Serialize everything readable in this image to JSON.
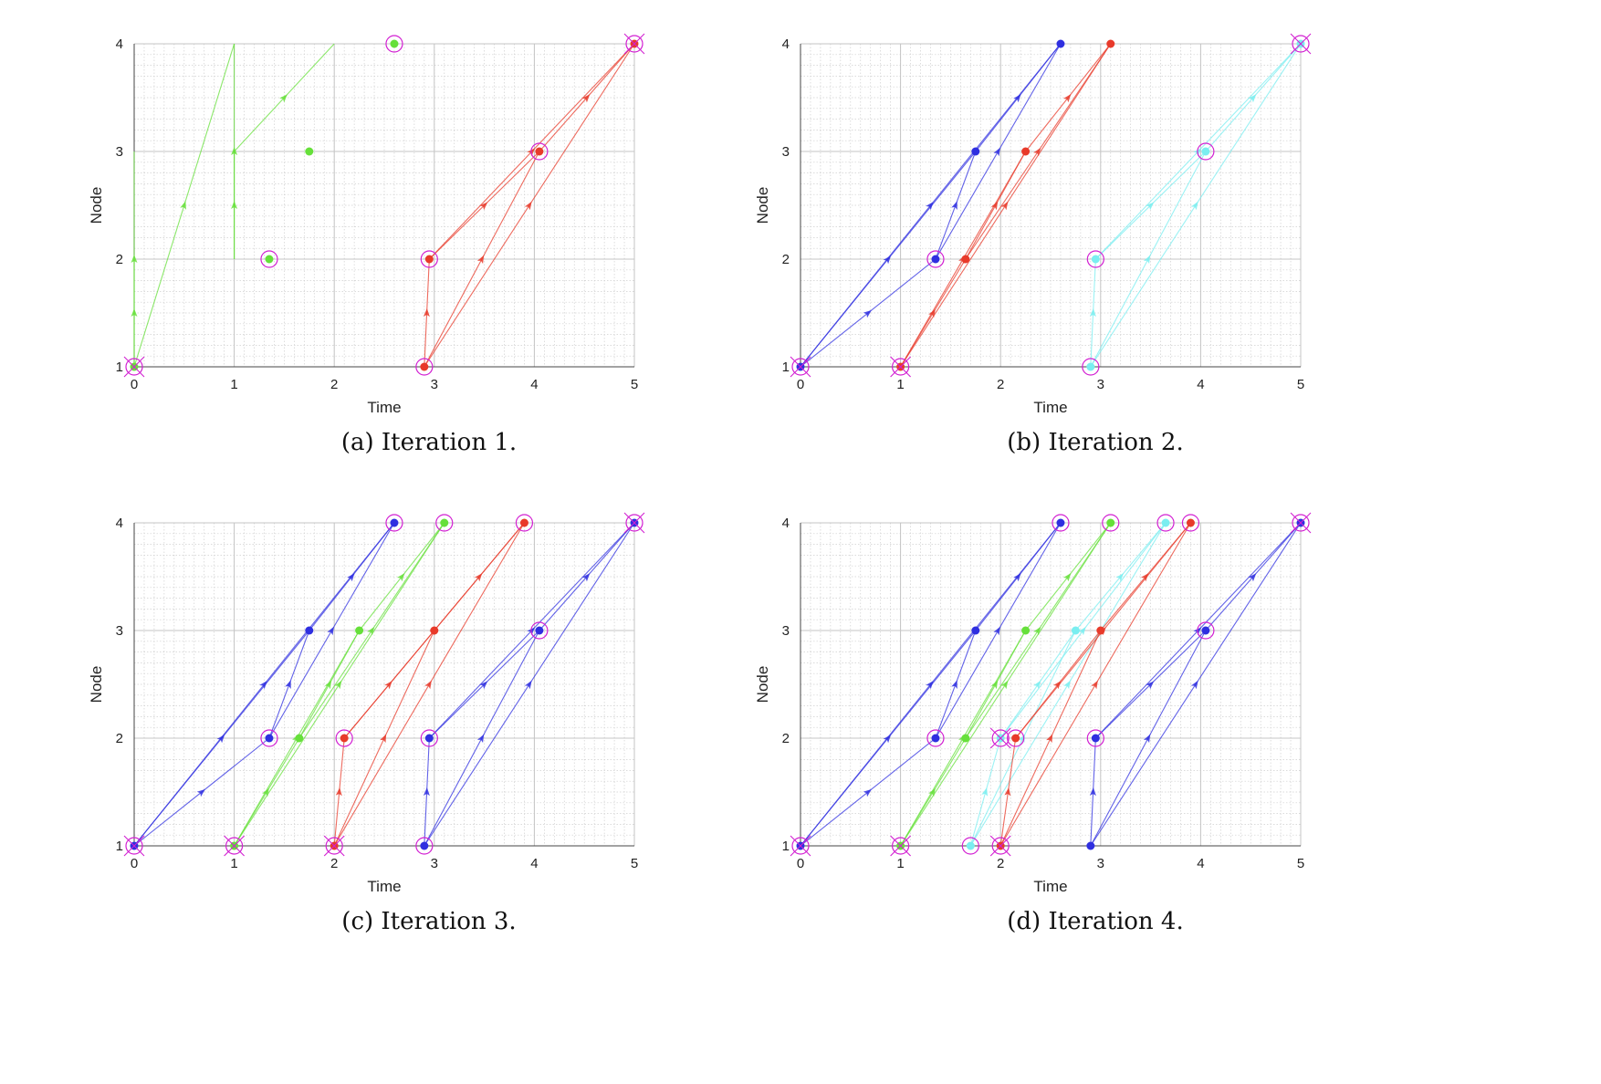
{
  "chart_data": [
    {
      "type": "line",
      "caption": "(a) Iteration 1.",
      "xlabel": "Time",
      "ylabel": "Node",
      "xlim": [
        0,
        5
      ],
      "ylim": [
        1,
        4
      ],
      "xticks": [
        "0",
        "1",
        "2",
        "3",
        "4",
        "5"
      ],
      "yticks": [
        "1",
        "2",
        "3",
        "4"
      ],
      "grid": true,
      "minor_grid": true,
      "groups": [
        {
          "color": "#66e03a",
          "nodes": [
            [
              0,
              1
            ],
            [
              1.35,
              2
            ],
            [
              1.75,
              3
            ],
            [
              2.6,
              4
            ]
          ],
          "edges": [
            [
              0,
              1,
              0,
              2
            ],
            [
              0,
              1,
              0,
              3
            ],
            [
              0,
              1,
              1,
              4
            ],
            [
              1,
              2,
              1,
              3
            ],
            [
              1,
              2,
              1,
              4
            ],
            [
              1,
              3,
              2,
              4
            ]
          ],
          "circled": [
            [
              0,
              1
            ],
            [
              1.35,
              2
            ],
            [
              2.6,
              4
            ]
          ],
          "crossed": [
            [
              0,
              1
            ]
          ]
        },
        {
          "color": "#e83a2a",
          "nodes": [
            [
              2.9,
              1
            ],
            [
              2.95,
              2
            ],
            [
              4.05,
              3
            ],
            [
              5,
              4
            ]
          ],
          "edges": [
            [
              2.9,
              1,
              2.95,
              2
            ],
            [
              2.95,
              2,
              4.05,
              3
            ],
            [
              2.9,
              1,
              4.05,
              3
            ],
            [
              2.95,
              2,
              5,
              4
            ],
            [
              4.05,
              3,
              5,
              4
            ],
            [
              2.9,
              1,
              5,
              4
            ]
          ],
          "circled": [
            [
              2.9,
              1
            ],
            [
              2.95,
              2
            ],
            [
              4.05,
              3
            ],
            [
              5,
              4
            ]
          ],
          "crossed": [
            [
              5,
              4
            ]
          ]
        }
      ]
    },
    {
      "type": "line",
      "caption": "(b) Iteration 2.",
      "xlabel": "Time",
      "ylabel": "Node",
      "xlim": [
        0,
        5
      ],
      "ylim": [
        1,
        4
      ],
      "xticks": [
        "0",
        "1",
        "2",
        "3",
        "4",
        "5"
      ],
      "yticks": [
        "1",
        "2",
        "3",
        "4"
      ],
      "grid": true,
      "minor_grid": true,
      "groups": [
        {
          "color": "#2f2fe0",
          "nodes": [
            [
              0,
              1
            ],
            [
              1.35,
              2
            ],
            [
              1.75,
              3
            ],
            [
              2.6,
              4
            ]
          ],
          "edges": [
            [
              0,
              1,
              1.35,
              2
            ],
            [
              0,
              1,
              1.75,
              3
            ],
            [
              0,
              1,
              2.6,
              4
            ],
            [
              1.35,
              2,
              1.75,
              3
            ],
            [
              1.35,
              2,
              2.6,
              4
            ],
            [
              1.75,
              3,
              2.6,
              4
            ]
          ],
          "circled": [
            [
              0,
              1
            ],
            [
              1.35,
              2
            ]
          ],
          "crossed": [
            [
              0,
              1
            ]
          ]
        },
        {
          "color": "#e83a2a",
          "nodes": [
            [
              1,
              1
            ],
            [
              1.65,
              2
            ],
            [
              2.25,
              3
            ],
            [
              3.1,
              4
            ]
          ],
          "edges": [
            [
              1,
              1,
              1.65,
              2
            ],
            [
              1,
              1,
              2.25,
              3
            ],
            [
              1,
              1,
              3.1,
              4
            ],
            [
              1.65,
              2,
              2.25,
              3
            ],
            [
              1.65,
              2,
              3.1,
              4
            ],
            [
              2.25,
              3,
              3.1,
              4
            ]
          ],
          "circled": [
            [
              1,
              1
            ]
          ],
          "crossed": [
            [
              1,
              1
            ]
          ]
        },
        {
          "color": "#7aeef0",
          "nodes": [
            [
              2.9,
              1
            ],
            [
              2.95,
              2
            ],
            [
              4.05,
              3
            ],
            [
              5,
              4
            ]
          ],
          "edges": [
            [
              2.9,
              1,
              2.95,
              2
            ],
            [
              2.95,
              2,
              4.05,
              3
            ],
            [
              2.9,
              1,
              4.05,
              3
            ],
            [
              2.95,
              2,
              5,
              4
            ],
            [
              4.05,
              3,
              5,
              4
            ],
            [
              2.9,
              1,
              5,
              4
            ]
          ],
          "circled": [
            [
              2.9,
              1
            ],
            [
              2.95,
              2
            ],
            [
              4.05,
              3
            ],
            [
              5,
              4
            ]
          ],
          "crossed": [
            [
              5,
              4
            ]
          ]
        }
      ]
    },
    {
      "type": "line",
      "caption": "(c) Iteration 3.",
      "xlabel": "Time",
      "ylabel": "Node",
      "xlim": [
        0,
        5
      ],
      "ylim": [
        1,
        4
      ],
      "xticks": [
        "0",
        "1",
        "2",
        "3",
        "4",
        "5"
      ],
      "yticks": [
        "1",
        "2",
        "3",
        "4"
      ],
      "grid": true,
      "minor_grid": true,
      "groups": [
        {
          "color": "#2f2fe0",
          "nodes": [
            [
              0,
              1
            ],
            [
              1.35,
              2
            ],
            [
              1.75,
              3
            ],
            [
              2.6,
              4
            ]
          ],
          "edges": [
            [
              0,
              1,
              1.35,
              2
            ],
            [
              0,
              1,
              1.75,
              3
            ],
            [
              0,
              1,
              2.6,
              4
            ],
            [
              1.35,
              2,
              1.75,
              3
            ],
            [
              1.35,
              2,
              2.6,
              4
            ],
            [
              1.75,
              3,
              2.6,
              4
            ]
          ],
          "circled": [
            [
              0,
              1
            ],
            [
              1.35,
              2
            ],
            [
              2.6,
              4
            ]
          ],
          "crossed": [
            [
              0,
              1
            ]
          ]
        },
        {
          "color": "#66e03a",
          "nodes": [
            [
              1,
              1
            ],
            [
              1.65,
              2
            ],
            [
              2.25,
              3
            ],
            [
              3.1,
              4
            ]
          ],
          "edges": [
            [
              1,
              1,
              1.65,
              2
            ],
            [
              1,
              1,
              2.25,
              3
            ],
            [
              1,
              1,
              3.1,
              4
            ],
            [
              1.65,
              2,
              2.25,
              3
            ],
            [
              1.65,
              2,
              3.1,
              4
            ],
            [
              2.25,
              3,
              3.1,
              4
            ]
          ],
          "circled": [
            [
              1,
              1
            ],
            [
              3.1,
              4
            ]
          ],
          "crossed": [
            [
              1,
              1
            ]
          ]
        },
        {
          "color": "#e83a2a",
          "nodes": [
            [
              2,
              1
            ],
            [
              2.1,
              2
            ],
            [
              3,
              3
            ],
            [
              3.9,
              4
            ]
          ],
          "edges": [
            [
              2,
              1,
              2.1,
              2
            ],
            [
              2,
              1,
              3,
              3
            ],
            [
              2,
              1,
              3.9,
              4
            ],
            [
              2.1,
              2,
              3,
              3
            ],
            [
              2.1,
              2,
              3.9,
              4
            ],
            [
              3,
              3,
              3.9,
              4
            ]
          ],
          "circled": [
            [
              2,
              1
            ],
            [
              2.1,
              2
            ],
            [
              3.9,
              4
            ]
          ],
          "crossed": [
            [
              2,
              1
            ]
          ]
        },
        {
          "color": "#2f2fe0",
          "nodes": [
            [
              2.9,
              1
            ],
            [
              2.95,
              2
            ],
            [
              4.05,
              3
            ],
            [
              5,
              4
            ]
          ],
          "edges": [
            [
              2.9,
              1,
              2.95,
              2
            ],
            [
              2.95,
              2,
              4.05,
              3
            ],
            [
              2.9,
              1,
              4.05,
              3
            ],
            [
              2.95,
              2,
              5,
              4
            ],
            [
              4.05,
              3,
              5,
              4
            ],
            [
              2.9,
              1,
              5,
              4
            ]
          ],
          "circled": [
            [
              2.9,
              1
            ],
            [
              2.95,
              2
            ],
            [
              4.05,
              3
            ],
            [
              5,
              4
            ]
          ],
          "crossed": [
            [
              5,
              4
            ]
          ]
        }
      ]
    },
    {
      "type": "line",
      "caption": "(d) Iteration 4.",
      "xlabel": "Time",
      "ylabel": "Node",
      "xlim": [
        0,
        5
      ],
      "ylim": [
        1,
        4
      ],
      "xticks": [
        "0",
        "1",
        "2",
        "3",
        "4",
        "5"
      ],
      "yticks": [
        "1",
        "2",
        "3",
        "4"
      ],
      "grid": true,
      "minor_grid": true,
      "groups": [
        {
          "color": "#2f2fe0",
          "nodes": [
            [
              0,
              1
            ],
            [
              1.35,
              2
            ],
            [
              1.75,
              3
            ],
            [
              2.6,
              4
            ]
          ],
          "edges": [
            [
              0,
              1,
              1.35,
              2
            ],
            [
              0,
              1,
              1.75,
              3
            ],
            [
              0,
              1,
              2.6,
              4
            ],
            [
              1.35,
              2,
              1.75,
              3
            ],
            [
              1.35,
              2,
              2.6,
              4
            ],
            [
              1.75,
              3,
              2.6,
              4
            ]
          ],
          "circled": [
            [
              0,
              1
            ],
            [
              1.35,
              2
            ],
            [
              2.6,
              4
            ]
          ],
          "crossed": [
            [
              0,
              1
            ]
          ]
        },
        {
          "color": "#66e03a",
          "nodes": [
            [
              1,
              1
            ],
            [
              1.65,
              2
            ],
            [
              2.25,
              3
            ],
            [
              3.1,
              4
            ]
          ],
          "edges": [
            [
              1,
              1,
              1.65,
              2
            ],
            [
              1,
              1,
              2.25,
              3
            ],
            [
              1,
              1,
              3.1,
              4
            ],
            [
              1.65,
              2,
              2.25,
              3
            ],
            [
              1.65,
              2,
              3.1,
              4
            ],
            [
              2.25,
              3,
              3.1,
              4
            ]
          ],
          "circled": [
            [
              1,
              1
            ],
            [
              3.1,
              4
            ]
          ],
          "crossed": [
            [
              1,
              1
            ]
          ]
        },
        {
          "color": "#7aeef0",
          "nodes": [
            [
              1.7,
              1
            ],
            [
              2,
              2
            ],
            [
              2.75,
              3
            ],
            [
              3.65,
              4
            ]
          ],
          "edges": [
            [
              1.7,
              1,
              2,
              2
            ],
            [
              1.7,
              1,
              2.75,
              3
            ],
            [
              1.7,
              1,
              3.65,
              4
            ],
            [
              2,
              2,
              2.75,
              3
            ],
            [
              2,
              2,
              3.65,
              4
            ],
            [
              2.75,
              3,
              3.65,
              4
            ]
          ],
          "circled": [
            [
              1.7,
              1
            ],
            [
              2,
              2
            ],
            [
              3.65,
              4
            ]
          ],
          "crossed": [
            [
              2,
              2
            ]
          ]
        },
        {
          "color": "#e83a2a",
          "nodes": [
            [
              2,
              1
            ],
            [
              2.15,
              2
            ],
            [
              3,
              3
            ],
            [
              3.9,
              4
            ]
          ],
          "edges": [
            [
              2,
              1,
              2.15,
              2
            ],
            [
              2,
              1,
              3,
              3
            ],
            [
              2,
              1,
              3.9,
              4
            ],
            [
              2.15,
              2,
              3,
              3
            ],
            [
              2.15,
              2,
              3.9,
              4
            ],
            [
              3,
              3,
              3.9,
              4
            ]
          ],
          "circled": [
            [
              2,
              1
            ],
            [
              2.15,
              2
            ],
            [
              3.9,
              4
            ]
          ],
          "crossed": [
            [
              2,
              1
            ]
          ]
        },
        {
          "color": "#2f2fe0",
          "nodes": [
            [
              2.9,
              1
            ],
            [
              2.95,
              2
            ],
            [
              4.05,
              3
            ],
            [
              5,
              4
            ]
          ],
          "edges": [
            [
              2.9,
              1,
              2.95,
              2
            ],
            [
              2.95,
              2,
              4.05,
              3
            ],
            [
              2.9,
              1,
              4.05,
              3
            ],
            [
              2.95,
              2,
              5,
              4
            ],
            [
              4.05,
              3,
              5,
              4
            ],
            [
              2.9,
              1,
              5,
              4
            ]
          ],
          "circled": [
            [
              2.95,
              2
            ],
            [
              4.05,
              3
            ],
            [
              5,
              4
            ]
          ],
          "crossed": [
            [
              5,
              4
            ]
          ]
        }
      ]
    }
  ]
}
